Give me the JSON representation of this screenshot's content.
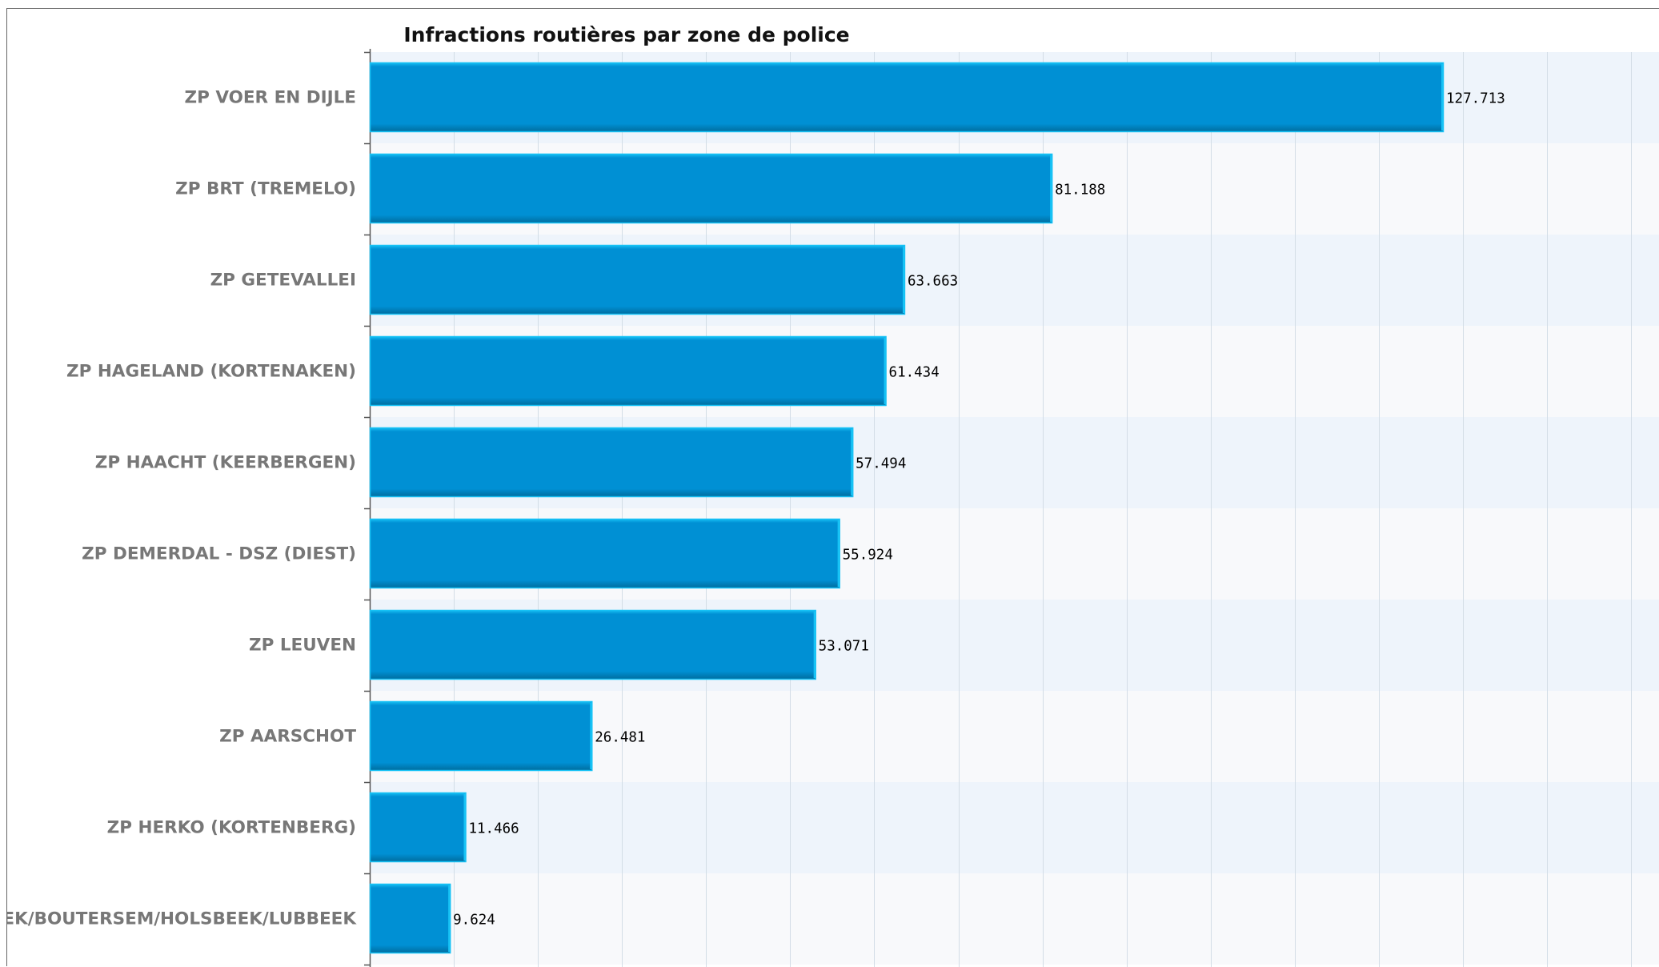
{
  "chart_data": {
    "type": "bar",
    "orientation": "horizontal",
    "title": "Infractions routières par zone de police",
    "xlabel": "",
    "ylabel": "",
    "xlim": [
      0,
      140000
    ],
    "grid": true,
    "legend": "none",
    "categories": [
      "ZP VOER EN DIJLE",
      "ZP BRT (TREMELO)",
      "ZP GETEVALLEI",
      "ZP HAGELAND (KORTENAKEN)",
      "ZP HAACHT (KEERBERGEN)",
      "ZP DEMERDAL - DSZ (DIEST)",
      "ZP LEUVEN",
      "ZP AARSCHOT",
      "ZP HERKO (KORTENBERG)",
      "ZP BIERBEEK/BOUTERSEM/HOLSBEEK/LUBBEEK"
    ],
    "values": [
      127713,
      81188,
      63663,
      61434,
      57494,
      55924,
      53071,
      26481,
      11466,
      9624
    ],
    "value_labels": [
      "127.713",
      "81.188",
      "63.663",
      "61.434",
      "57.494",
      "55.924",
      "53.071",
      "26.481",
      "11.466",
      "9.624"
    ],
    "colors": {
      "bar_fill": "#0090d4",
      "bar_top": "#17c2f5",
      "bar_bottom": "#006b9c",
      "band_light": "#eef4fb",
      "band_white": "#f8f9fb",
      "grid": "#d3dde6",
      "axis": "#555555"
    }
  }
}
